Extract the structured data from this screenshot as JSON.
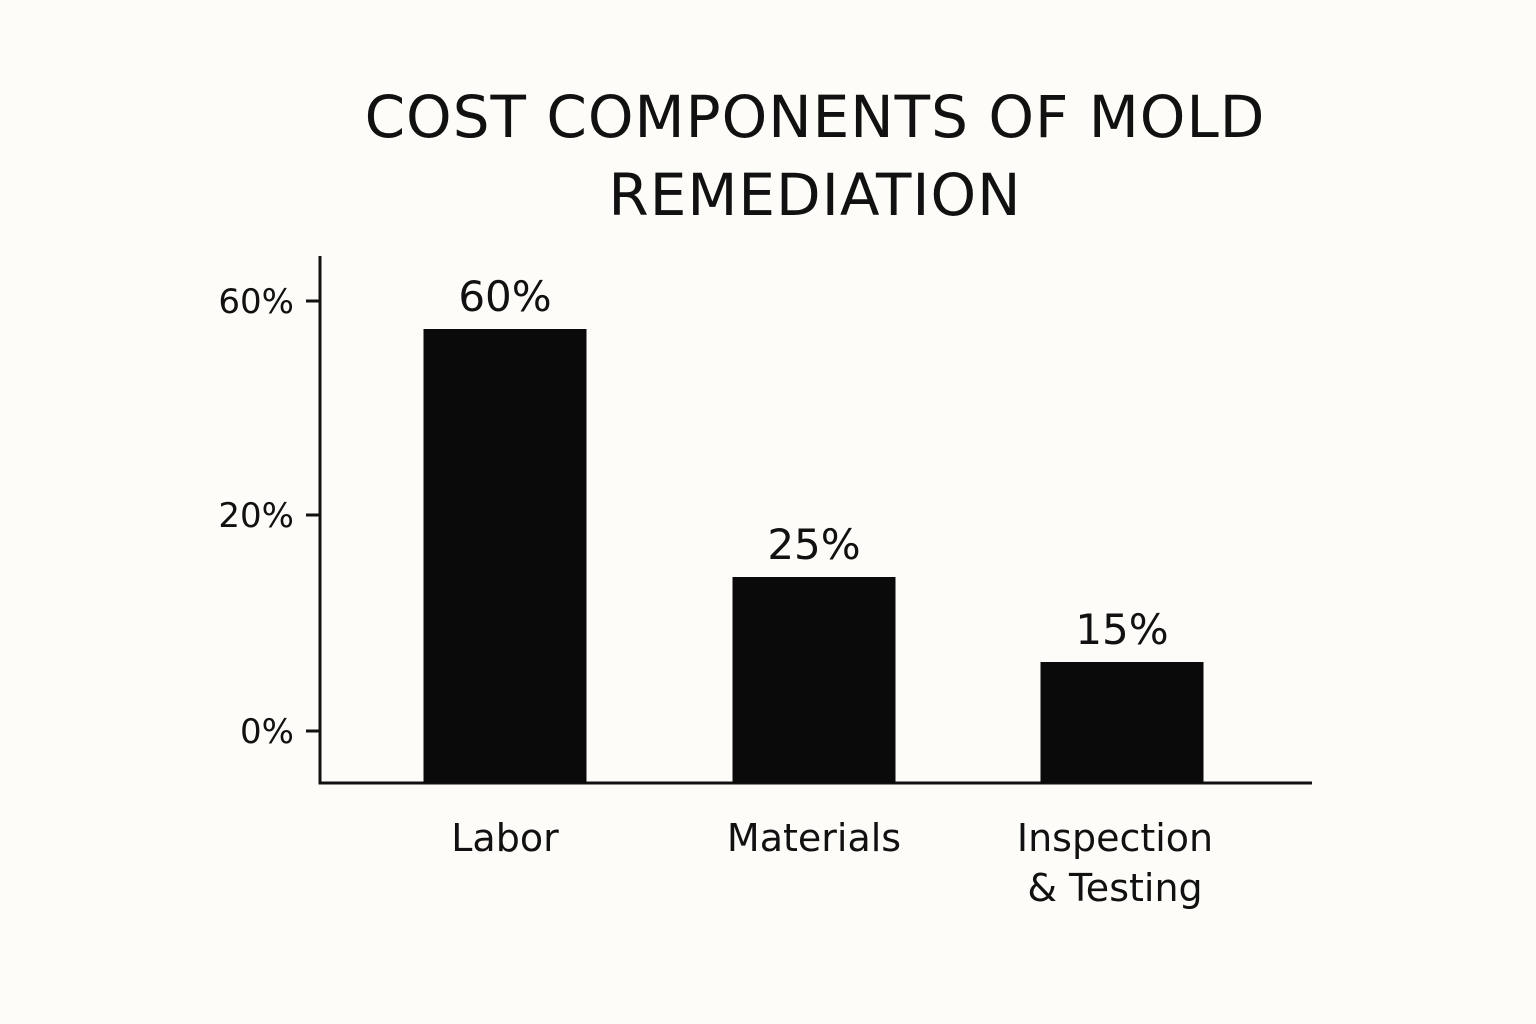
{
  "chart_data": {
    "type": "bar",
    "title_lines": [
      "COST COMPONENTS OF MOLD",
      "REMEDIATION"
    ],
    "categories": [
      [
        "Labor"
      ],
      [
        "Materials"
      ],
      [
        "Inspection",
        "& Testing"
      ]
    ],
    "values": [
      60,
      25,
      15
    ],
    "value_labels": [
      "60%",
      "25%",
      "15%"
    ],
    "y_ticks": [
      {
        "value": 0,
        "label": "0%"
      },
      {
        "value": 20,
        "label": "20%"
      },
      {
        "value": 60,
        "label": "60%"
      }
    ],
    "xlabel": "",
    "ylabel": "",
    "grid": false,
    "bar_color": "#0a0a0a",
    "axis_color": "#111111"
  }
}
